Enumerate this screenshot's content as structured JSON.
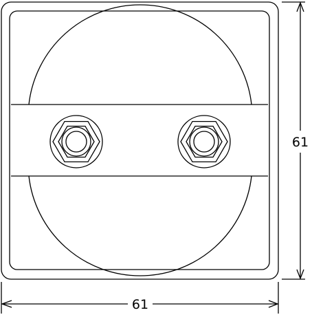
{
  "drawing": {
    "dimensions": {
      "width_label": "61",
      "height_label": "61"
    },
    "colors": {
      "line": "#000000",
      "background": "#ffffff"
    }
  }
}
